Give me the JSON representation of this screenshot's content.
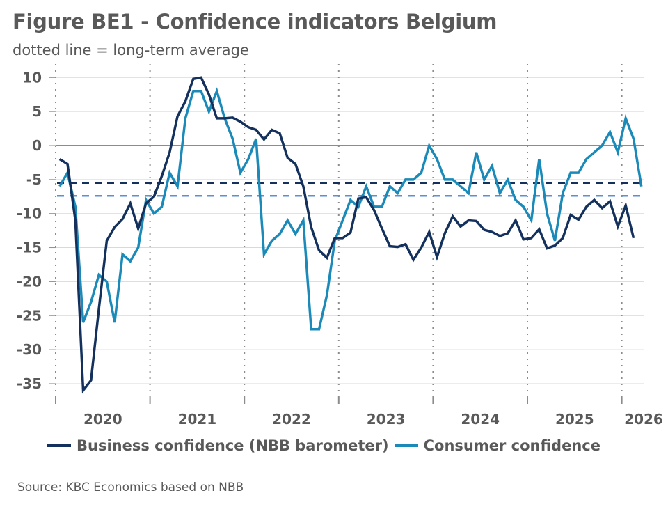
{
  "chart_data": {
    "type": "line",
    "title": "Figure BE1 - Confidence indicators Belgium",
    "subtitle": "dotted line = long-term average",
    "xlabel": "",
    "ylabel": "",
    "ylim": [
      -37,
      11
    ],
    "yticks": [
      10,
      5,
      0,
      -5,
      -10,
      -15,
      -20,
      -25,
      -30,
      -35
    ],
    "ytick_labels": [
      "10",
      "5",
      "0",
      "-5",
      "-10",
      "-15",
      "-20",
      "-25",
      "-30",
      "-35"
    ],
    "xticks": [
      "2020",
      "2021",
      "2022",
      "2023",
      "2024",
      "2025",
      "2026"
    ],
    "x_start": "2020-01",
    "frequency": "monthly",
    "grid": true,
    "year_separators": "dotted",
    "legend_position": "bottom",
    "series": [
      {
        "name": "Business confidence (NBB barometer)",
        "color": "#13315c",
        "long_term_average": -5.5,
        "values": [
          -2,
          -2.7,
          -11,
          -36,
          -34.5,
          -24,
          -14,
          -12,
          -10.8,
          -8.5,
          -12.2,
          -8.5,
          -7.5,
          -4.5,
          -1,
          4.3,
          6.5,
          9.8,
          10,
          7.5,
          4,
          4,
          4.1,
          3.5,
          2.7,
          2.3,
          0.9,
          2.3,
          1.8,
          -1.8,
          -2.7,
          -6,
          -12,
          -15.4,
          -16.5,
          -13.6,
          -13.6,
          -12.8,
          -7.8,
          -7.6,
          -9.5,
          -12.2,
          -14.8,
          -14.9,
          -14.5,
          -16.8,
          -15,
          -12.7,
          -16.4,
          -12.9,
          -10.4,
          -11.9,
          -11,
          -11.1,
          -12.4,
          -12.7,
          -13.3,
          -12.9,
          -11,
          -13.8,
          -13.6,
          -12.3,
          -15.1,
          -14.7,
          -13.6,
          -10.2,
          -10.9,
          -9,
          -8,
          -9.2,
          -8.2,
          -11.9,
          -8.8,
          -13.6
        ]
      },
      {
        "name": "Consumer confidence",
        "color": "#1b8ab8",
        "long_term_average": -7.4,
        "values": [
          -6,
          -4,
          -9,
          -26,
          -23,
          -19,
          -20,
          -26,
          -16,
          -17,
          -15,
          -8,
          -10,
          -9,
          -4,
          -6,
          4,
          8,
          8,
          5,
          8,
          4,
          1,
          -4,
          -2,
          1,
          -16,
          -14,
          -13,
          -11,
          -13,
          -11,
          -27,
          -27,
          -22,
          -14,
          -11,
          -8,
          -9,
          -6,
          -9,
          -9,
          -6,
          -7,
          -5,
          -5,
          -4,
          0,
          -2,
          -5,
          -5,
          -6,
          -7,
          -1,
          -5,
          -3,
          -7,
          -5,
          -8,
          -9,
          -11,
          -2,
          -10,
          -14,
          -7,
          -4,
          -4,
          -2,
          -1,
          0,
          2,
          -1,
          4,
          1,
          -6
        ]
      }
    ]
  },
  "header": {
    "title": "Figure BE1 - Confidence indicators Belgium",
    "subtitle": "dotted line = long-term average"
  },
  "legend": [
    {
      "label": "Business confidence (NBB barometer)",
      "color": "#13315c"
    },
    {
      "label": "Consumer confidence",
      "color": "#1b8ab8"
    }
  ],
  "footer": {
    "source": "Source: KBC Economics based on NBB"
  }
}
